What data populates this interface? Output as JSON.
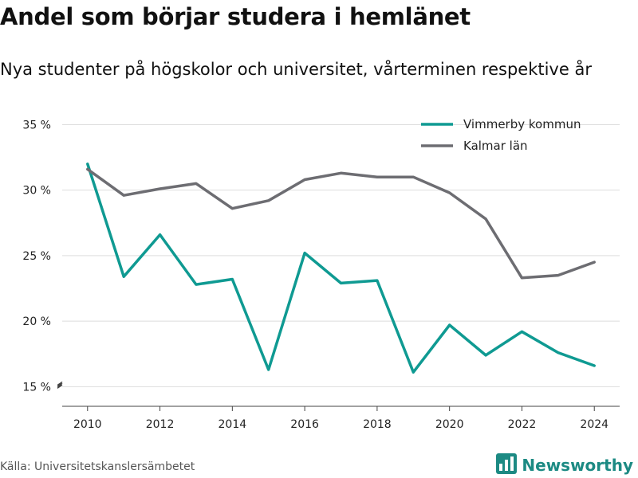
{
  "title": "Andel som börjar studera i hemlänet",
  "subtitle": "Nya studenter på högskolor och universitet, vårterminen respektive år",
  "source": "Källa: Universitetskanslersämbetet",
  "brand": {
    "name": "Newsworthy",
    "icon": "newsworthy-logo-icon",
    "color": "#1c8a83"
  },
  "chart_data": {
    "type": "line",
    "title": "Andel som börjar studera i hemlänet",
    "xlabel": "",
    "ylabel": "",
    "x": [
      2010,
      2011,
      2012,
      2013,
      2014,
      2015,
      2016,
      2017,
      2018,
      2019,
      2020,
      2021,
      2022,
      2023,
      2024
    ],
    "xticks": [
      2010,
      2012,
      2014,
      2016,
      2018,
      2020,
      2022,
      2024
    ],
    "yticks": [
      15,
      20,
      25,
      30,
      35
    ],
    "ytick_labels": [
      "15 %",
      "20 %",
      "25 %",
      "30 %",
      "35 %"
    ],
    "ylim": [
      13.5,
      36
    ],
    "grid": true,
    "axis_break": true,
    "legend_position": "top-right",
    "series": [
      {
        "name": "Vimmerby kommun",
        "color": "#0f9a92",
        "values": [
          32.0,
          23.4,
          26.6,
          22.8,
          23.2,
          16.3,
          25.2,
          22.9,
          23.1,
          16.1,
          19.7,
          17.4,
          19.2,
          17.6,
          16.6
        ]
      },
      {
        "name": "Kalmar län",
        "color": "#6d6d72",
        "values": [
          31.6,
          29.6,
          30.1,
          30.5,
          28.6,
          29.2,
          30.8,
          31.3,
          31.0,
          31.0,
          29.8,
          27.8,
          23.3,
          23.5,
          24.5
        ]
      }
    ]
  }
}
